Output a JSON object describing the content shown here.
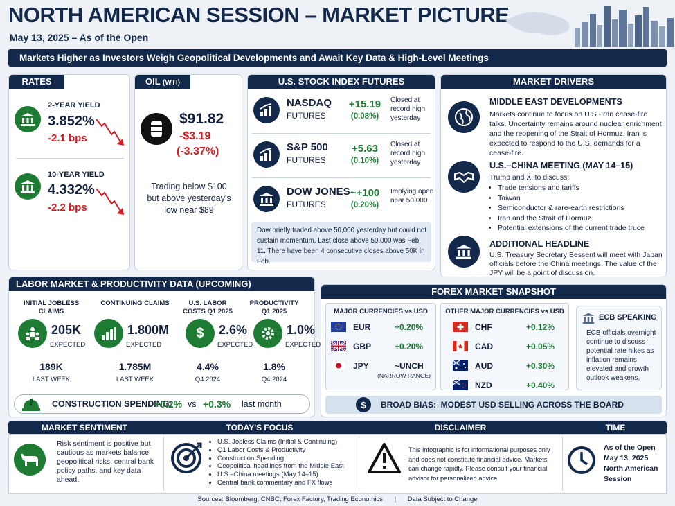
{
  "header": {
    "title": "NORTH AMERICAN SESSION – MARKET PICTURE",
    "date": "May 13, 2025 – As of the Open",
    "banner": "Markets Higher as Investors Weigh Geopolitical Developments and Await Key Data & High-Level Meetings"
  },
  "rates": {
    "title": "RATES",
    "items": [
      {
        "label": "2-YEAR YIELD",
        "value": "3.852%",
        "change": "-2.1 bps"
      },
      {
        "label": "10-YEAR YIELD",
        "value": "4.332%",
        "change": "-2.2 bps"
      }
    ]
  },
  "oil": {
    "title": "OIL",
    "title_sub": "(WTI)",
    "price": "$91.82",
    "change": "-$3.19",
    "pct": "(-3.37%)",
    "note": "Trading below $100 but above yesterday's low near $89"
  },
  "futures": {
    "title": "U.S. STOCK INDEX FUTURES",
    "items": [
      {
        "name": "NASDAQ",
        "sub": "FUTURES",
        "change": "+15.19",
        "pct": "(0.08%)",
        "note": "Closed at record high yesterday"
      },
      {
        "name": "S&P 500",
        "sub": "FUTURES",
        "change": "+5.63",
        "pct": "(0.10%)",
        "note": "Closed at record high yesterday"
      },
      {
        "name": "DOW JONES",
        "sub": "FUTURES",
        "change": "~+100",
        "pct": "(0.20%)",
        "note": "Implying open near 50,000"
      }
    ],
    "note": "Dow briefly traded above 50,000 yesterday but could not sustain momentum. Last close above 50,000 was Feb 11. There have been 4 consecutive closes above 50K in Feb."
  },
  "drivers": {
    "title": "MARKET DRIVERS",
    "mideast": {
      "title": "MIDDLE EAST DEVELOPMENTS",
      "text": "Markets continue to focus on U.S.-Iran cease-fire talks. Uncertainty remains around nuclear enrichment and the reopening of the Strait of Hormuz. Iran is expected to respond to the U.S. demands for a cease-fire."
    },
    "china": {
      "title": "U.S.–CHINA MEETING (MAY 14–15)",
      "intro": "Trump and Xi to discuss:",
      "bullets": [
        "Trade tensions and tariffs",
        "Taiwan",
        "Semiconductor & rare-earth restrictions",
        "Iran and the Strait of Hormuz",
        "Potential extensions of the current trade truce"
      ]
    },
    "headline": {
      "title": "ADDITIONAL HEADLINE",
      "text": "U.S. Treasury Secretary Bessent will meet with Japan officials before the China meetings. The value of the JPY will be a point of discussion."
    }
  },
  "labor": {
    "title": "LABOR MARKET & PRODUCTIVITY DATA (UPCOMING)",
    "items": [
      {
        "label": "INITIAL JOBLESS CLAIMS",
        "value": "205K",
        "expected": "EXPECTED",
        "prev": "189K",
        "prev_label": "LAST WEEK"
      },
      {
        "label": "CONTINUING CLAIMS",
        "value": "1.800M",
        "expected": "EXPECTED",
        "prev": "1.785M",
        "prev_label": "LAST WEEK"
      },
      {
        "label": "U.S. LABOR COSTS Q1 2025",
        "value": "2.6%",
        "expected": "EXPECTED",
        "prev": "4.4%",
        "prev_label": "Q4 2024"
      },
      {
        "label": "PRODUCTIVITY Q1 2025",
        "value": "1.0%",
        "expected": "EXPECTED",
        "prev": "1.8%",
        "prev_label": "Q4 2024"
      }
    ],
    "construction": {
      "label": "CONSTRUCTION SPENDING:",
      "value": "+0.2%",
      "vs": "vs",
      "prev": "+0.3%",
      "prev_label": "last month"
    }
  },
  "forex": {
    "title": "FOREX MARKET SNAPSHOT",
    "major_title": "MAJOR CURRENCIES vs USD",
    "major": [
      {
        "code": "EUR",
        "change": "+0.20%"
      },
      {
        "code": "GBP",
        "change": "+0.20%"
      },
      {
        "code": "JPY",
        "change": "~UNCH",
        "note": "(NARROW RANGE)"
      }
    ],
    "other_title": "OTHER MAJOR CURRENCIES vs USD",
    "other": [
      {
        "code": "CHF",
        "change": "+0.12%"
      },
      {
        "code": "CAD",
        "change": "+0.05%"
      },
      {
        "code": "AUD",
        "change": "+0.30%"
      },
      {
        "code": "NZD",
        "change": "+0.40%"
      }
    ],
    "ecb": {
      "title": "ECB SPEAKING",
      "text": "ECB officials overnight continue to discuss potential rate hikes as inflation remains elevated and growth outlook weakens."
    },
    "bias": "BROAD BIAS:  MODEST USD SELLING ACROSS THE BOARD"
  },
  "sentiment": {
    "title": "MARKET SENTIMENT",
    "text": "Risk sentiment is positive but cautious as markets balance geopolitical risks, central bank policy paths, and key data ahead."
  },
  "focus": {
    "title": "TODAY'S FOCUS",
    "items": [
      "U.S. Jobless Claims (Initial & Continuing)",
      "Q1 Labor Costs & Productivity",
      "Construction Spending",
      "Geopolitical headlines from the Middle East",
      "U.S.–China meetings (May 14–15)",
      "Central bank commentary and FX flows"
    ]
  },
  "disclaimer": {
    "title": "DISCLAIMER",
    "text": "This infographic is for informational purposes only and does not constitute financial advice. Markets can change rapidly. Please consult your financial advisor for personalized advice."
  },
  "time": {
    "title": "TIME",
    "line1": "As of the Open",
    "line2": "May 13, 2025",
    "line3": "North American",
    "line4": "Session"
  },
  "footer": {
    "sources": "Sources: Bloomberg, CNBC, Forex Factory, Trading Economics",
    "sep": "|",
    "note": "Data Subject to Change"
  },
  "colors": {
    "navy": "#13294b",
    "green": "#1e7b34",
    "red": "#d71920"
  }
}
